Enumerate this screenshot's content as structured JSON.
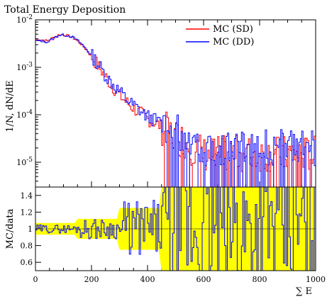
{
  "chart_data": [
    {
      "type": "line",
      "title": "Total Energy Deposition",
      "ylabel": "1/N, dN/dE",
      "xlabel": "",
      "y_scale": "log",
      "xlim": [
        0,
        1000
      ],
      "ylim": [
        3e-06,
        0.01
      ],
      "y_tick_labels": [
        "10^{-2}",
        "10^{-3}",
        "10^{-4}",
        "10^{-5}"
      ],
      "y_ticks": [
        0.01,
        0.001,
        0.0001,
        1e-05
      ],
      "legend_position": "top-right",
      "series": [
        {
          "name": "MC (SD)",
          "color": "#ff0000",
          "x": [
            0,
            20,
            40,
            60,
            80,
            100,
            120,
            140,
            160,
            180,
            200,
            220,
            240,
            260,
            280,
            300,
            320,
            340,
            360,
            380,
            400,
            420,
            440,
            460,
            480,
            500,
            520,
            540,
            560,
            580,
            600
          ],
          "values": [
            0.0038,
            0.0038,
            0.0036,
            0.0042,
            0.0048,
            0.0048,
            0.0045,
            0.0039,
            0.0031,
            0.0023,
            0.0016,
            0.0011,
            0.00075,
            0.0005,
            0.00035,
            0.00025,
            0.00019,
            0.00015,
            0.00012,
            0.0001,
            8e-05,
            7e-05,
            6e-05,
            5e-05,
            4e-05,
            3.5e-05,
            3e-05,
            2.5e-05,
            2e-05,
            1.8e-05,
            1.5e-05
          ]
        },
        {
          "name": "MC (DD)",
          "color": "#0000ff",
          "x": [
            0,
            20,
            40,
            60,
            80,
            100,
            120,
            140,
            160,
            180,
            200,
            220,
            240,
            260,
            280,
            300,
            320,
            340,
            360,
            380,
            400,
            420,
            440,
            460,
            480,
            500,
            520,
            540,
            560,
            580,
            600
          ],
          "values": [
            0.0036,
            0.0036,
            0.0034,
            0.004,
            0.0047,
            0.0048,
            0.0046,
            0.004,
            0.0032,
            0.0024,
            0.0017,
            0.0012,
            0.0008,
            0.00055,
            0.0004,
            0.0003,
            0.00022,
            0.00017,
            0.00014,
            0.00011,
            9e-05,
            8e-05,
            7e-05,
            6e-05,
            5e-05,
            4.5e-05,
            4e-05,
            3.5e-05,
            3e-05,
            2.5e-05,
            2e-05
          ]
        }
      ]
    },
    {
      "type": "line",
      "ylabel": "MC/data",
      "xlabel": "∑ E",
      "xlim": [
        0,
        1000
      ],
      "ylim": [
        0.5,
        1.5
      ],
      "x_ticks": [
        0,
        200,
        400,
        600,
        800,
        1000
      ],
      "x_tick_labels": [
        "0",
        "200",
        "400",
        "600",
        "800",
        "1000"
      ],
      "y_ticks": [
        0.6,
        0.8,
        1,
        1.2,
        1.4
      ],
      "y_tick_labels": [
        "0.6",
        "0.8",
        "1",
        "1.2",
        "1.4"
      ],
      "band_color": "#ffff00",
      "series": [
        {
          "name": "",
          "color": "#0000ff",
          "x": [
            0,
            50,
            100,
            150,
            200,
            250,
            300,
            350,
            400,
            450,
            500,
            550,
            600,
            650,
            700,
            750,
            800,
            850,
            900,
            950,
            1000
          ],
          "values": [
            0.97,
            0.96,
            1.0,
            1.02,
            1.05,
            1.08,
            1.1,
            1.12,
            1.15,
            1.1,
            1.0,
            1.05,
            1.0,
            1.0,
            1.0,
            1.0,
            1.0,
            1.0,
            1.0,
            1.0,
            1.0
          ]
        }
      ]
    }
  ]
}
